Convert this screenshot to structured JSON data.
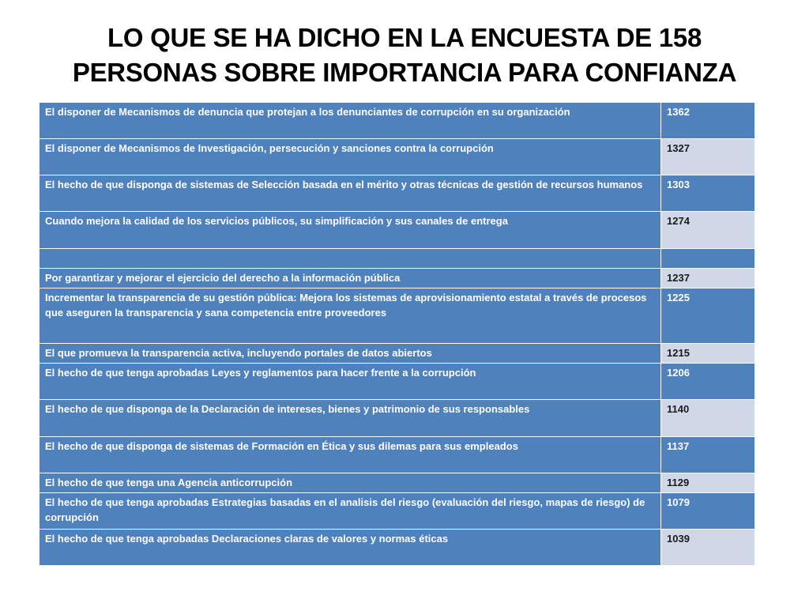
{
  "title_line1": "LO QUE SE HA DICHO EN LA ENCUESTA DE 158",
  "title_line2": "PERSONAS SOBRE IMPORTANCIA PARA CONFIANZA",
  "table": {
    "rows": [
      {
        "label": "El disponer de Mecanismos de denuncia que protejan a los denunciantes de corrupción en su organización",
        "value": "1362"
      },
      {
        "label": "El disponer de Mecanismos de Investigación, persecución y sanciones contra la corrupción",
        "value": "1327"
      },
      {
        "label": "El hecho de que disponga de sistemas de Selección basada en el mérito y otras técnicas de gestión de recursos humanos",
        "value": "1303"
      },
      {
        "label": "Cuando mejora la calidad de los servicios públicos, su simplificación y sus canales de entrega",
        "value": "1274"
      },
      {
        "label": "",
        "value": ""
      },
      {
        "label": "Por garantizar y mejorar el ejercicio del derecho a la información pública",
        "value": "1237"
      },
      {
        "label": "Incrementar la transparencia de su gestión pública: Mejora los sistemas de aprovisionamiento estatal a través de procesos que aseguren la transparencia y sana competencia entre proveedores",
        "value": "1225"
      },
      {
        "label": "El que promueva la transparencia activa, incluyendo portales de datos abiertos",
        "value": "1215"
      },
      {
        "label": "El hecho de que tenga aprobadas Leyes y reglamentos para hacer frente a la corrupción",
        "value": "1206"
      },
      {
        "label": "El hecho de que disponga de la Declaración de intereses, bienes y patrimonio de sus responsables",
        "value": "1140"
      },
      {
        "label": "El hecho de que disponga de sistemas de Formación en Ética y sus dilemas para sus empleados",
        "value": "1137"
      },
      {
        "label": "El hecho de que tenga una Agencia anticorrupción",
        "value": "1129"
      },
      {
        "label": "El hecho de que tenga aprobadas Estrategias basadas en el analisis del riesgo (evaluación del riesgo, mapas de riesgo) de corrupción",
        "value": "1079"
      },
      {
        "label": "El hecho de que tenga aprobadas Declaraciones claras de valores y normas éticas",
        "value": "1039"
      }
    ]
  },
  "colors": {
    "header_blue": "#4f81bd",
    "light_band": "#d0d8e8",
    "title_text": "#000000"
  }
}
